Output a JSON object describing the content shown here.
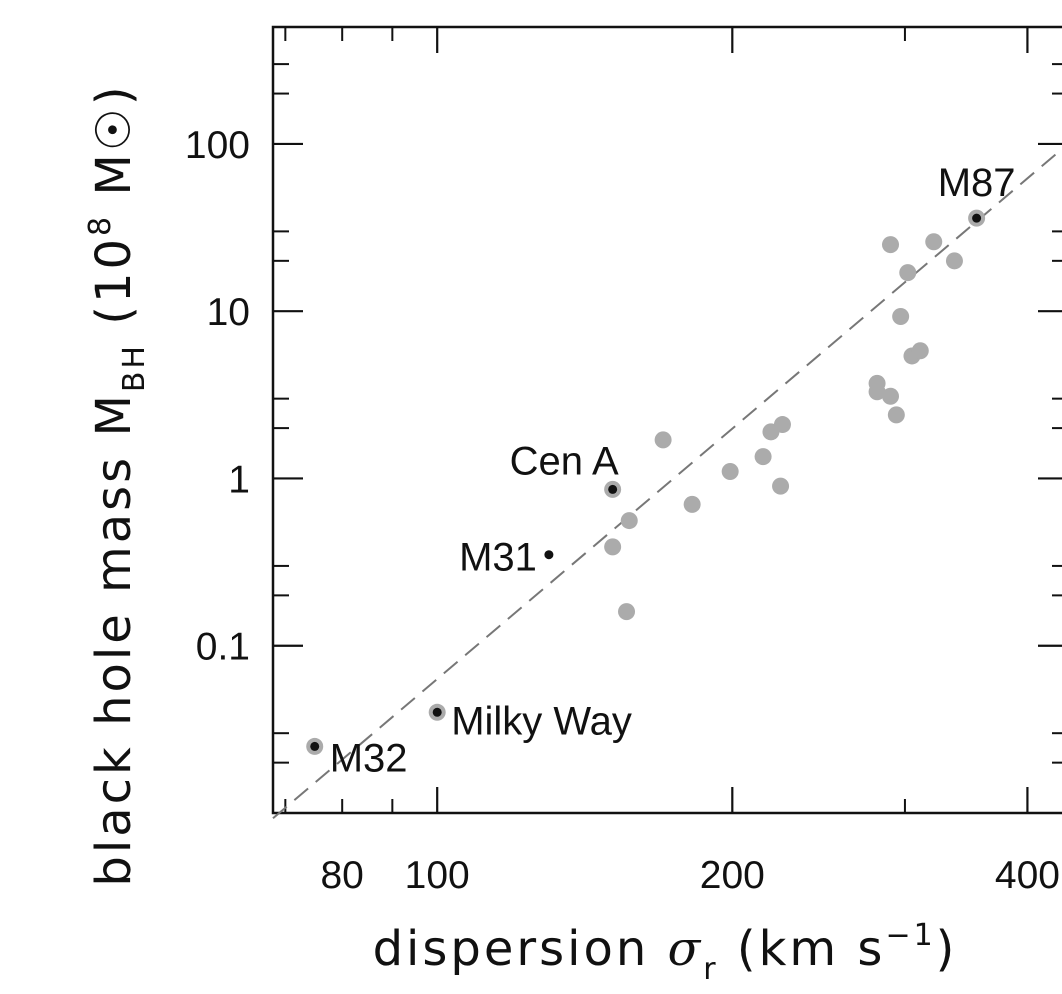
{
  "chart_data": {
    "type": "scatter",
    "xlabel": "dispersion σr (km s−1)",
    "xlabel_parts": {
      "pre": "dispersion ",
      "sym": "σ",
      "sub": "r",
      "post": " (km s",
      "sup": "−1",
      "end": ")"
    },
    "ylabel_parts": {
      "pre": "black hole mass M",
      "sub": "BH",
      "mid": " (10",
      "sup": "8",
      "unit": " M",
      "end": ")"
    },
    "xscale": "log",
    "yscale": "log",
    "xlim": [
      68,
      440
    ],
    "ylim": [
      0.01,
      500
    ],
    "x_tick_labels": [
      {
        "v": 80,
        "label": "80"
      },
      {
        "v": 100,
        "label": "100"
      },
      {
        "v": 200,
        "label": "200"
      },
      {
        "v": 400,
        "label": "400"
      }
    ],
    "x_major_ticks": [
      100,
      200,
      400
    ],
    "x_minor_ticks": [
      70,
      80,
      90,
      300
    ],
    "y_tick_labels": [
      {
        "v": 0.1,
        "label": "0.1"
      },
      {
        "v": 1,
        "label": "1"
      },
      {
        "v": 10,
        "label": "10"
      },
      {
        "v": 100,
        "label": "100"
      }
    ],
    "y_major_ticks": [
      0.1,
      1,
      10,
      100
    ],
    "y_minor_ticks": [
      0.02,
      0.03,
      0.2,
      0.3,
      2,
      3,
      20,
      30,
      200,
      300
    ],
    "fit_line": {
      "style": "dashed",
      "x": [
        68,
        440
      ],
      "y": [
        0.0093,
        100
      ]
    },
    "series": [
      {
        "style": "gray",
        "points": [
          [
            151,
            0.39
          ],
          [
            157,
            0.56
          ],
          [
            156,
            0.16
          ],
          [
            170,
            1.7
          ],
          [
            182,
            0.7
          ],
          [
            199,
            1.1
          ],
          [
            215,
            1.35
          ],
          [
            219,
            1.9
          ],
          [
            224,
            0.9
          ],
          [
            225,
            2.1
          ],
          [
            281,
            3.7
          ],
          [
            281,
            3.3
          ],
          [
            290,
            3.1
          ],
          [
            290,
            25
          ],
          [
            294,
            2.4
          ],
          [
            297,
            9.3
          ],
          [
            302,
            17
          ],
          [
            305,
            5.4
          ],
          [
            311,
            5.8
          ],
          [
            321,
            26
          ],
          [
            337,
            20
          ]
        ]
      },
      {
        "style": "labeled",
        "points": [
          [
            355,
            36
          ],
          [
            151,
            0.86
          ],
          [
            100,
            0.04
          ],
          [
            75,
            0.025
          ]
        ]
      },
      {
        "style": "black",
        "points": [
          [
            130,
            0.35
          ]
        ]
      }
    ],
    "annotations": [
      {
        "text": "M87",
        "x": 355,
        "y": 36
      },
      {
        "text": "Cen A",
        "x": 151,
        "y": 0.86
      },
      {
        "text": "M31",
        "x": 130,
        "y": 0.35
      },
      {
        "text": "Milky Way",
        "x": 100,
        "y": 0.04
      },
      {
        "text": "M32",
        "x": 75,
        "y": 0.025
      }
    ],
    "colors": {
      "gray_point": "#ababab",
      "black_point": "#111111",
      "axis": "#111111",
      "fit_line": "#777777"
    }
  }
}
